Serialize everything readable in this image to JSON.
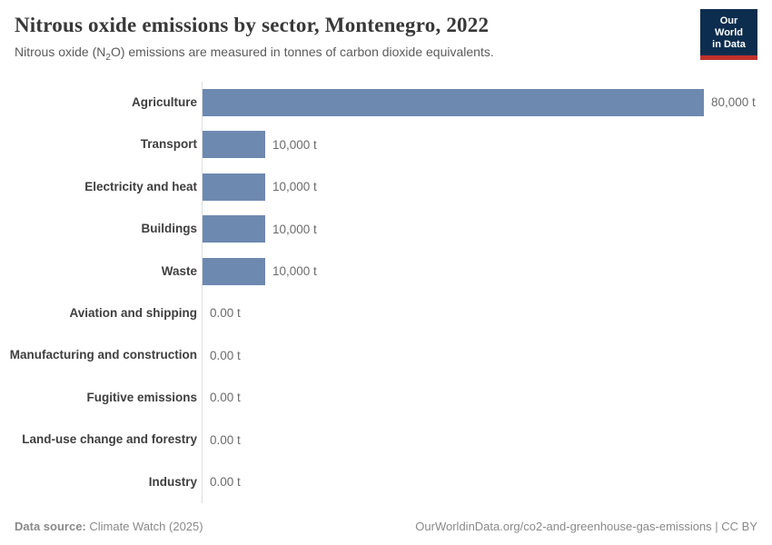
{
  "header": {
    "title": "Nitrous oxide emissions by sector, Montenegro, 2022",
    "subtitle_pre": "Nitrous oxide (N",
    "subtitle_sub": "2",
    "subtitle_post": "O) emissions are measured in tonnes of carbon dioxide equivalents.",
    "logo_line1": "Our World",
    "logo_line2": "in Data"
  },
  "chart_data": {
    "type": "bar",
    "orientation": "horizontal",
    "title": "Nitrous oxide emissions by sector, Montenegro, 2022",
    "unit": "tonnes of carbon dioxide equivalents",
    "categories": [
      "Agriculture",
      "Transport",
      "Electricity and heat",
      "Buildings",
      "Waste",
      "Aviation and shipping",
      "Manufacturing and construction",
      "Fugitive emissions",
      "Land-use change and forestry",
      "Industry"
    ],
    "values": [
      80000,
      10000,
      10000,
      10000,
      10000,
      0,
      0,
      0,
      0,
      0
    ],
    "value_labels": [
      "80,000 t",
      "10,000 t",
      "10,000 t",
      "10,000 t",
      "10,000 t",
      "0.00 t",
      "0.00 t",
      "0.00 t",
      "0.00 t",
      "0.00 t"
    ],
    "xlim": [
      0,
      80000
    ],
    "grid": false,
    "legend": "none",
    "bar_color": "#6d89b0",
    "axis_color": "#dedede"
  },
  "footer": {
    "source_label": "Data source:",
    "source_value": " Climate Watch (2025)",
    "link_text": "OurWorldinData.org/co2-and-greenhouse-gas-emissions | CC BY"
  },
  "colors": {
    "title": "#383838",
    "subtitle": "#5b5b5b",
    "category_label": "#3f3f3f",
    "value_label": "#6b6b6b",
    "footer_text": "#8a8a8a",
    "logo_background": "#0d2d4e",
    "logo_accent": "#c0312b"
  }
}
